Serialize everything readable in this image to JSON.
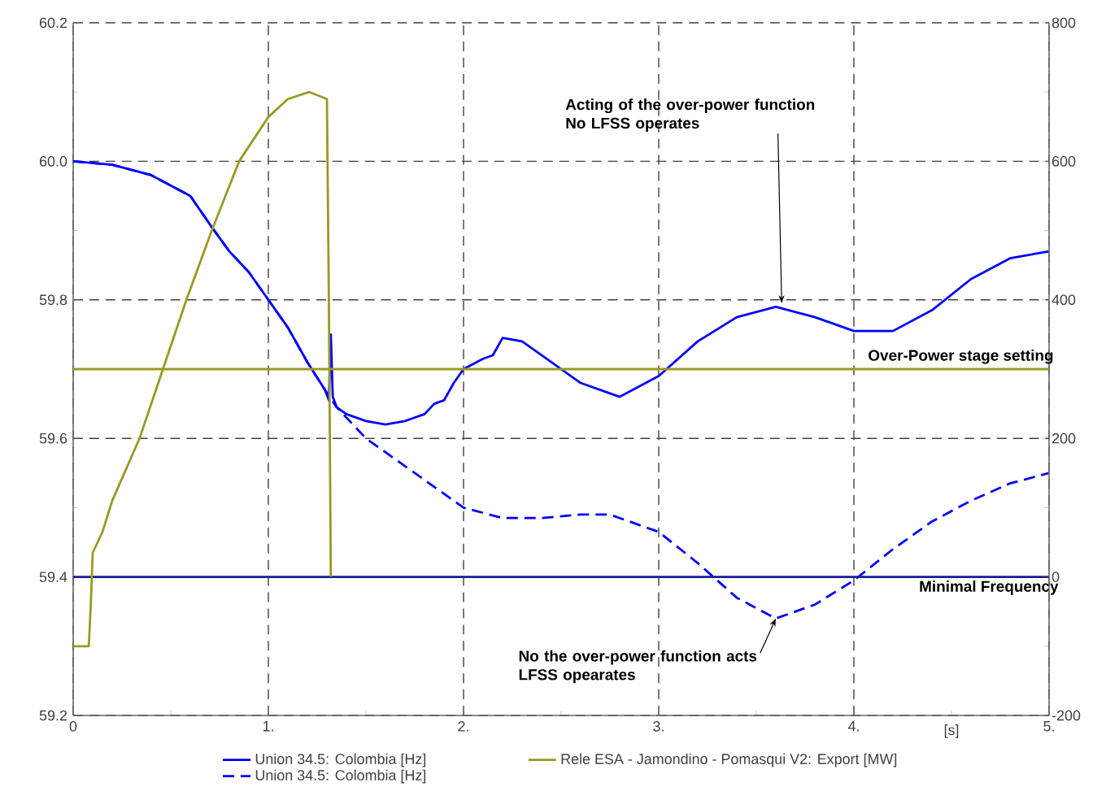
{
  "chart_data": {
    "type": "line",
    "xlabel": "[s]",
    "xlim": [
      0,
      5
    ],
    "xticks": [
      0,
      {
        "value": 1,
        "label": "1."
      },
      {
        "value": 2,
        "label": "2."
      },
      {
        "value": 3,
        "label": "3."
      },
      {
        "value": 4,
        "label": "4."
      },
      {
        "value": 5,
        "label": "5."
      }
    ],
    "ylim": [
      59.2,
      60.2
    ],
    "yticks": [
      59.2,
      59.4,
      59.6,
      59.8,
      {
        "value": 60,
        "label": "60.0"
      },
      60.2
    ],
    "y2lim": [
      -200,
      800
    ],
    "y2ticks": [
      -200,
      0,
      200,
      400,
      600,
      800
    ],
    "grid": true,
    "legend": "bottom",
    "series": [
      {
        "name": "Union 34.5: Colombia [Hz]",
        "color": "#0000ff",
        "line_style": "solid",
        "x": [
          0,
          0.2,
          0.4,
          0.6,
          0.71,
          0.8,
          0.9,
          1.0,
          1.1,
          1.2,
          1.29,
          1.31,
          1.32,
          1.33,
          1.35,
          1.4,
          1.5,
          1.6,
          1.7,
          1.8,
          1.85,
          1.9,
          1.95,
          2.0,
          2.1,
          2.15,
          2.2,
          2.3,
          2.4,
          2.6,
          2.8,
          3.0,
          3.2,
          3.4,
          3.6,
          3.8,
          4.0,
          4.2,
          4.4,
          4.6,
          4.8,
          5.0
        ],
        "values": [
          60.0,
          59.995,
          59.98,
          59.95,
          59.905,
          59.87,
          59.84,
          59.8,
          59.76,
          59.71,
          59.67,
          59.655,
          59.75,
          59.66,
          59.645,
          59.635,
          59.625,
          59.62,
          59.625,
          59.635,
          59.65,
          59.655,
          59.68,
          59.7,
          59.715,
          59.72,
          59.745,
          59.74,
          59.72,
          59.68,
          59.66,
          59.69,
          59.74,
          59.775,
          59.79,
          59.775,
          59.755,
          59.755,
          59.785,
          59.83,
          59.86,
          59.87
        ]
      },
      {
        "name": "Union 34.5: Colombia [Hz]",
        "color": "#0000ff",
        "line_style": "dashed",
        "x": [
          0,
          0.2,
          0.4,
          0.6,
          0.71,
          0.8,
          0.9,
          1.0,
          1.1,
          1.2,
          1.29,
          1.35,
          1.4,
          1.5,
          1.6,
          1.7,
          1.8,
          2.0,
          2.2,
          2.4,
          2.6,
          2.75,
          3.0,
          3.2,
          3.4,
          3.6,
          3.8,
          4.0,
          4.2,
          4.4,
          4.6,
          4.8,
          5.0
        ],
        "values": [
          60.0,
          59.995,
          59.98,
          59.95,
          59.905,
          59.87,
          59.84,
          59.8,
          59.76,
          59.71,
          59.67,
          59.645,
          59.63,
          59.6,
          59.58,
          59.56,
          59.54,
          59.5,
          59.485,
          59.485,
          59.49,
          59.49,
          59.465,
          59.42,
          59.37,
          59.34,
          59.36,
          59.395,
          59.44,
          59.48,
          59.51,
          59.535,
          59.55
        ]
      },
      {
        "name": "Rele ESA - Jamondino - Pomasqui V2: Export  [MW]",
        "color": "#999922",
        "line_style": "solid",
        "axis": "y2",
        "x": [
          0,
          0.08,
          0.09,
          0.1,
          0.15,
          0.2,
          0.34,
          0.46,
          0.58,
          0.71,
          0.85,
          1.0,
          1.1,
          1.21,
          1.3,
          1.31,
          1.32
        ],
        "values": [
          -100,
          -100,
          -40,
          35,
          65,
          110,
          200,
          300,
          400,
          500,
          600,
          664,
          690,
          700,
          690,
          400,
          0
        ]
      }
    ],
    "ref_lines": [
      {
        "axis": "y2",
        "value": 300,
        "label": "Over-Power stage setting",
        "color": "#999922"
      },
      {
        "axis": "y",
        "value": 59.4,
        "label": "Minimal Frequency",
        "color": "#1a1a9c"
      }
    ],
    "annotations": [
      {
        "text": "Acting of the over-power function No LFSS operates",
        "x": 3.63,
        "y": 59.795
      },
      {
        "text": "No the over-power function acts LFSS opearates",
        "x": 3.6,
        "y": 59.34
      }
    ]
  }
}
